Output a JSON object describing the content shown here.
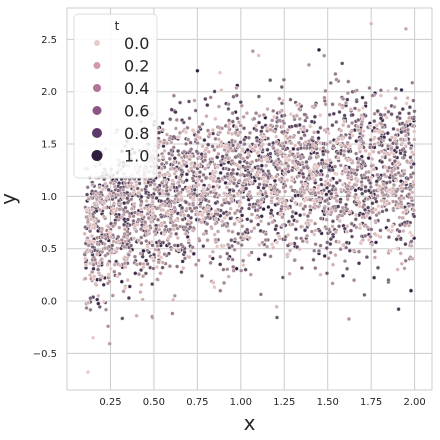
{
  "chart_data": {
    "type": "scatter",
    "title": "",
    "xlabel": "x",
    "ylabel": "y",
    "xlim": [
      0.0,
      2.1
    ],
    "ylim": [
      -0.85,
      2.8
    ],
    "x_ticks": [
      0.25,
      0.5,
      0.75,
      1.0,
      1.25,
      1.5,
      1.75,
      2.0
    ],
    "x_tick_labels": [
      "0.25",
      "0.50",
      "0.75",
      "1.00",
      "1.25",
      "1.50",
      "1.75",
      "2.00"
    ],
    "y_ticks": [
      -0.5,
      0.0,
      0.5,
      1.0,
      1.5,
      2.0,
      2.5
    ],
    "y_tick_labels": [
      "−0.5",
      "0.0",
      "0.5",
      "1.0",
      "1.5",
      "2.0",
      "2.5"
    ],
    "grid": true,
    "background": "#ffffff",
    "grid_color": "#cccccc",
    "hue_variable": "t",
    "hue_range": [
      0.0,
      1.0
    ],
    "hue_colors": [
      "#ebc8c6",
      "#2d1e3e"
    ],
    "legend": {
      "title": "t",
      "placement": "upper-left",
      "entries": [
        {
          "label": "0.0",
          "value": 0.0,
          "color": "#e8cbcb"
        },
        {
          "label": "0.2",
          "value": 0.2,
          "color": "#d399a8"
        },
        {
          "label": "0.4",
          "value": 0.4,
          "color": "#b27596"
        },
        {
          "label": "0.6",
          "value": 0.6,
          "color": "#8a5686"
        },
        {
          "label": "0.8",
          "value": 0.8,
          "color": "#5e3a6b"
        },
        {
          "label": "1.0",
          "value": 1.0,
          "color": "#2d1e3e"
        }
      ]
    },
    "sample_points": [
      {
        "x": 0.12,
        "y": -0.68,
        "t": 0.0
      },
      {
        "x": 0.15,
        "y": -0.35,
        "t": 0.0
      },
      {
        "x": 0.18,
        "y": 0.05,
        "t": 0.1
      },
      {
        "x": 0.2,
        "y": 0.4,
        "t": 0.2
      },
      {
        "x": 0.22,
        "y": 0.95,
        "t": 0.9
      },
      {
        "x": 0.25,
        "y": 1.05,
        "t": 0.8
      },
      {
        "x": 0.3,
        "y": 1.3,
        "t": 0.7
      },
      {
        "x": 0.35,
        "y": 0.2,
        "t": 0.1
      },
      {
        "x": 0.45,
        "y": 1.55,
        "t": 0.6
      },
      {
        "x": 0.55,
        "y": 1.7,
        "t": 0.9
      },
      {
        "x": 0.62,
        "y": 0.05,
        "t": 0.3
      },
      {
        "x": 0.75,
        "y": 2.2,
        "t": 1.0
      },
      {
        "x": 0.9,
        "y": 0.3,
        "t": 0.5
      },
      {
        "x": 1.0,
        "y": 1.9,
        "t": 0.8
      },
      {
        "x": 1.1,
        "y": 0.8,
        "t": 0.6
      },
      {
        "x": 1.25,
        "y": 1.6,
        "t": 0.7
      },
      {
        "x": 1.45,
        "y": 2.4,
        "t": 1.0
      },
      {
        "x": 1.55,
        "y": 0.9,
        "t": 0.9
      },
      {
        "x": 1.75,
        "y": 2.65,
        "t": 0.1
      },
      {
        "x": 1.85,
        "y": 0.2,
        "t": 0.6
      },
      {
        "x": 1.95,
        "y": 2.6,
        "t": 0.2
      },
      {
        "x": 1.98,
        "y": 1.75,
        "t": 0.5
      }
    ]
  }
}
